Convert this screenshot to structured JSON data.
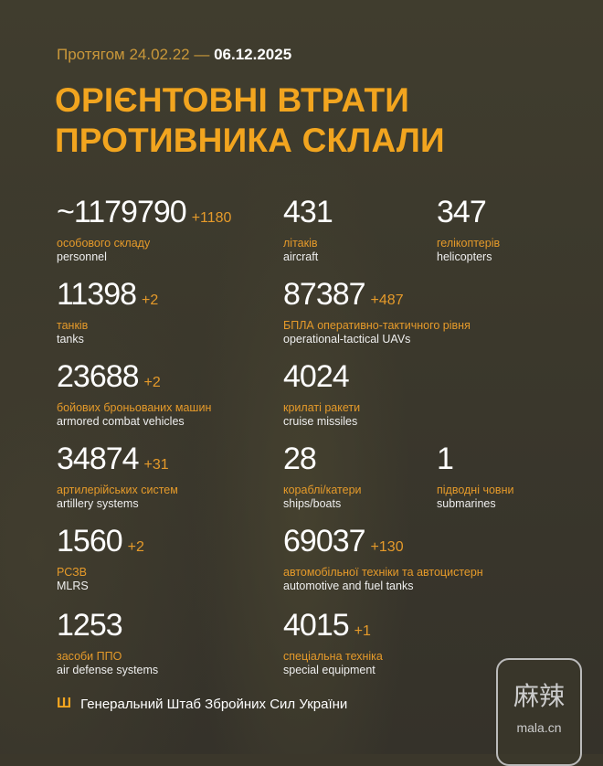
{
  "header": {
    "period_prefix": "Протягом 24.02.22 — ",
    "period_end": "06.12.2025",
    "title_line1": "ОРІЄНТОВНІ ВТРАТИ",
    "title_line2": "ПРОТИВНИКА СКЛАЛИ"
  },
  "items": [
    {
      "value": "~1179790",
      "delta": "+1180",
      "ua": "особового складу",
      "en": "personnel"
    },
    {
      "value": "431",
      "delta": "",
      "ua": "літаків",
      "en": "aircraft"
    },
    {
      "value": "347",
      "delta": "",
      "ua": "гелікоптерів",
      "en": "helicopters"
    },
    {
      "value": "11398",
      "delta": "+2",
      "ua": "танків",
      "en": "tanks"
    },
    {
      "value": "87387",
      "delta": "+487",
      "ua": "БПЛА оперативно-тактичного рівня",
      "en": "operational-tactical UAVs"
    },
    {
      "value": "23688",
      "delta": "+2",
      "ua": "бойових броньованих машин",
      "en": "armored combat vehicles"
    },
    {
      "value": "4024",
      "delta": "",
      "ua": "крилаті ракети",
      "en": "cruise missiles"
    },
    {
      "value": "34874",
      "delta": "+31",
      "ua": "артилерійських систем",
      "en": "artillery systems"
    },
    {
      "value": "28",
      "delta": "",
      "ua": "кораблі/катери",
      "en": "ships/boats"
    },
    {
      "value": "1",
      "delta": "",
      "ua": "підводні човни",
      "en": "submarines"
    },
    {
      "value": "1560",
      "delta": "+2",
      "ua": "РСЗВ",
      "en": "MLRS"
    },
    {
      "value": "69037",
      "delta": "+130",
      "ua": "автомобільної техніки та автоцистерн",
      "en": "automotive and fuel tanks"
    },
    {
      "value": "1253",
      "delta": "",
      "ua": "засоби ППО",
      "en": "air defense systems"
    },
    {
      "value": "4015",
      "delta": "+1",
      "ua": "спеціальна техніка",
      "en": "special equipment"
    }
  ],
  "footer": {
    "icon": "trident-icon",
    "text": "Генеральний Штаб Збройних Сил України"
  },
  "watermark": {
    "chinese": "麻辣",
    "domain": "mala.cn"
  },
  "colors": {
    "background": "#3b372b",
    "accent": "#f2a51f"
  }
}
